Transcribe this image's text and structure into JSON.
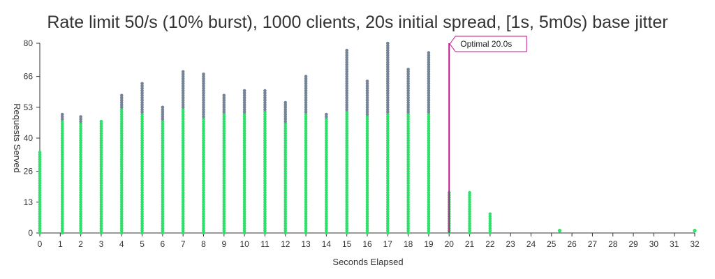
{
  "chart_data": {
    "type": "scatter",
    "title": "Rate limit 50/s (10% burst), 1000 clients, 20s initial spread, [1s, 5m0s) base jitter",
    "xlabel": "Seconds Elapsed",
    "ylabel": "Requests Served",
    "xlim": [
      0,
      32
    ],
    "ylim": [
      0,
      80
    ],
    "x_ticks": [
      "0",
      "1",
      "2",
      "3",
      "4",
      "5",
      "6",
      "7",
      "8",
      "9",
      "10",
      "11",
      "12",
      "13",
      "14",
      "15",
      "16",
      "17",
      "18",
      "19",
      "20",
      "21",
      "22",
      "23",
      "24",
      "25",
      "26",
      "27",
      "28",
      "29",
      "30",
      "31",
      "32"
    ],
    "y_ticks": [
      "0",
      "13",
      "26",
      "40",
      "53",
      "66",
      "80"
    ],
    "grid": false,
    "colors": {
      "served": "#2ee06a",
      "total": "#748496",
      "annotation": "#c0178c"
    },
    "x": [
      0,
      1.1,
      2.0,
      3.0,
      4.0,
      5.0,
      6.0,
      7.0,
      8.0,
      9.0,
      10.0,
      11.0,
      12.0,
      13.0,
      14.0,
      15.0,
      16.0,
      17.0,
      18.0,
      19.0,
      20.0,
      21.0,
      22.0,
      25.4,
      32.0
    ],
    "series": [
      {
        "name": "served",
        "values": [
          34,
          47,
          46,
          47,
          52,
          50,
          47,
          52,
          48,
          50,
          50,
          51,
          46,
          50,
          48,
          51,
          49,
          50,
          50,
          50,
          17,
          17,
          8,
          1,
          1
        ]
      },
      {
        "name": "total",
        "values": [
          34,
          50,
          49,
          47,
          58,
          63,
          53,
          68,
          67,
          58,
          60,
          60,
          55,
          66,
          50,
          77,
          64,
          80,
          69,
          76,
          17,
          17,
          8,
          1,
          1
        ]
      }
    ],
    "annotations": [
      {
        "x": 20.0,
        "label": "Optimal 20.0s"
      }
    ]
  }
}
